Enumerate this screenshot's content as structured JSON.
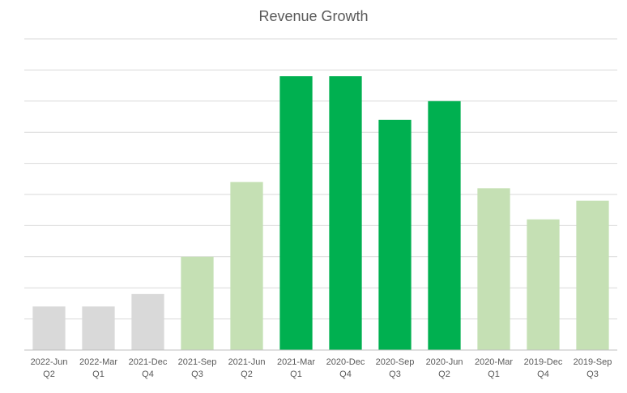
{
  "chart_data": {
    "type": "bar",
    "title": "Revenue Growth",
    "xlabel": "",
    "ylabel": "",
    "ylim": [
      0,
      100
    ],
    "grid": true,
    "legend": "none",
    "categories": [
      [
        "2022-Jun",
        "Q2"
      ],
      [
        "2022-Mar",
        "Q1"
      ],
      [
        "2021-Dec",
        "Q4"
      ],
      [
        "2021-Sep",
        "Q3"
      ],
      [
        "2021-Jun",
        "Q2"
      ],
      [
        "2021-Mar",
        "Q1"
      ],
      [
        "2020-Dec",
        "Q4"
      ],
      [
        "2020-Sep",
        "Q3"
      ],
      [
        "2020-Jun",
        "Q2"
      ],
      [
        "2020-Mar",
        "Q1"
      ],
      [
        "2019-Dec",
        "Q4"
      ],
      [
        "2019-Sep",
        "Q3"
      ]
    ],
    "values": [
      14,
      14,
      18,
      30,
      54,
      88,
      88,
      74,
      80,
      52,
      42,
      48
    ],
    "bar_colors": [
      "#d9d9d9",
      "#d9d9d9",
      "#d9d9d9",
      "#c5e0b4",
      "#c5e0b4",
      "#00b050",
      "#00b050",
      "#00b050",
      "#00b050",
      "#c5e0b4",
      "#c5e0b4",
      "#c5e0b4"
    ],
    "colors": {
      "grid": "#d9d9d9",
      "axis": "#bfbfbf",
      "text": "#595959"
    }
  }
}
